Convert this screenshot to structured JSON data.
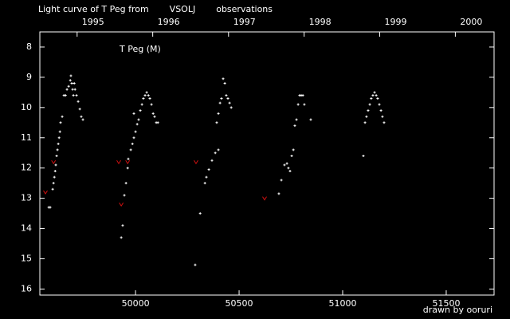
{
  "chart_data": {
    "type": "scatter",
    "title_parts": [
      "Light curve of T Peg from",
      "VSOLJ",
      "observations"
    ],
    "title_colors": [
      "#ffffff",
      "#ffd700",
      "#ffffff"
    ],
    "annotation": "T Peg (M)",
    "credit": "drawn by ooruri",
    "credit_color": "#00c8ff",
    "xlim": [
      49538,
      51731
    ],
    "ylim": [
      16.2,
      7.5
    ],
    "xticks": [
      50000,
      50500,
      51000,
      51500
    ],
    "x2ticks": [
      {
        "value": 49718,
        "label": "1995"
      },
      {
        "value": 50083,
        "label": "1996"
      },
      {
        "value": 50449,
        "label": "1997"
      },
      {
        "value": 50814,
        "label": "1998"
      },
      {
        "value": 51179,
        "label": "1999"
      },
      {
        "value": 51544,
        "label": "2000"
      }
    ],
    "yticks": [
      8,
      9,
      10,
      11,
      12,
      13,
      14,
      15,
      16
    ],
    "series": [
      {
        "color": "#ffffff",
        "marker": "plus",
        "x": [
          49581,
          49588,
          49600,
          49604,
          49608,
          49612,
          49615,
          49619,
          49623,
          49627,
          49631,
          49635,
          49638,
          49646,
          49654,
          49662,
          49669,
          49677,
          49685,
          49688,
          49692,
          49696,
          49700,
          49704,
          49708,
          49715,
          49723,
          49731,
          49738,
          49746,
          49931,
          49938,
          49946,
          49954,
          49962,
          49965,
          49977,
          49985,
          49992,
          50000,
          50008,
          50015,
          50023,
          50031,
          50038,
          50046,
          50054,
          50062,
          50069,
          50077,
          50085,
          50092,
          50100,
          50108,
          49992,
          50288,
          50312,
          50335,
          50342,
          50354,
          50369,
          50385,
          50400,
          50392,
          50400,
          50408,
          50415,
          50423,
          50431,
          50438,
          50446,
          50454,
          50462,
          50692,
          50704,
          50719,
          50731,
          50738,
          50746,
          50754,
          50762,
          50769,
          50777,
          50785,
          50792,
          50800,
          50808,
          50815,
          50846,
          51100,
          51108,
          51115,
          51123,
          51131,
          51138,
          51146,
          51154,
          51162,
          51169,
          51177,
          51185,
          51192,
          51200
        ],
        "values": [
          13.3,
          13.3,
          12.7,
          12.5,
          12.3,
          12.1,
          11.9,
          11.6,
          11.4,
          11.2,
          11.0,
          10.8,
          10.5,
          10.3,
          9.6,
          9.6,
          9.4,
          9.3,
          9.1,
          8.95,
          9.2,
          9.4,
          9.6,
          9.2,
          9.4,
          9.6,
          9.8,
          10.05,
          10.3,
          10.4,
          14.3,
          13.9,
          12.9,
          12.5,
          12.0,
          11.7,
          11.4,
          11.2,
          11.0,
          10.8,
          10.55,
          10.4,
          10.1,
          9.9,
          9.7,
          9.6,
          9.5,
          9.6,
          9.7,
          9.9,
          10.2,
          10.3,
          10.5,
          10.5,
          10.2,
          15.2,
          13.5,
          12.5,
          12.3,
          12.05,
          11.75,
          11.5,
          11.4,
          10.5,
          10.2,
          9.85,
          9.7,
          9.05,
          9.2,
          9.6,
          9.7,
          9.85,
          10.0,
          12.85,
          12.4,
          11.9,
          11.85,
          12.0,
          12.1,
          11.6,
          11.4,
          10.6,
          10.4,
          9.9,
          9.6,
          9.6,
          9.6,
          9.9,
          10.4,
          11.6,
          10.5,
          10.3,
          10.1,
          9.9,
          9.7,
          9.6,
          9.5,
          9.6,
          9.7,
          9.9,
          10.1,
          10.3,
          10.5
        ]
      },
      {
        "color": "#d01010",
        "marker": "v",
        "x": [
          49565,
          49604,
          49919,
          49931,
          49962,
          50292,
          50623
        ],
        "values": [
          12.8,
          11.8,
          11.8,
          13.2,
          11.8,
          11.8,
          13.0
        ]
      }
    ]
  }
}
